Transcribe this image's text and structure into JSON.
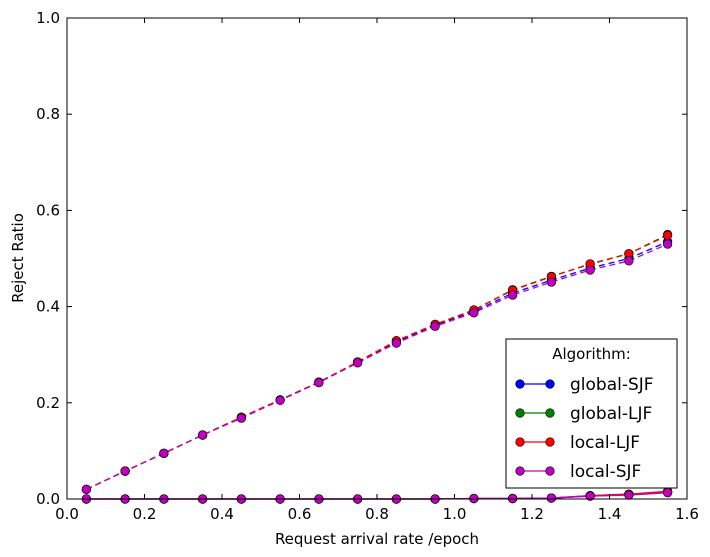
{
  "chart_data": {
    "type": "line",
    "xlabel": "Request arrival rate /epoch",
    "ylabel": "Reject Ratio",
    "xlim": [
      0.0,
      1.6
    ],
    "ylim": [
      0.0,
      1.0
    ],
    "xticks": [
      "0.0",
      "0.2",
      "0.4",
      "0.6",
      "0.8",
      "1.0",
      "1.2",
      "1.4",
      "1.6"
    ],
    "yticks": [
      "0.0",
      "0.2",
      "0.4",
      "0.6",
      "0.8",
      "1.0"
    ],
    "grid": false,
    "legend": {
      "title": "Algorithm:",
      "placement": "bottom-right",
      "entries": [
        {
          "label": "global-SJF",
          "color": "#0000ff"
        },
        {
          "label": "global-LJF",
          "color": "#008000"
        },
        {
          "label": "local-LJF",
          "color": "#ff0000"
        },
        {
          "label": "local-SJF",
          "color": "#bf00bf"
        }
      ]
    },
    "x": [
      0.05,
      0.15,
      0.25,
      0.35,
      0.45,
      0.55,
      0.65,
      0.75,
      0.85,
      0.95,
      1.05,
      1.15,
      1.25,
      1.35,
      1.45,
      1.55
    ],
    "series": [
      {
        "name": "global-SJF",
        "style": "dashed",
        "color": "#0000ff",
        "values": [
          0.02,
          0.058,
          0.095,
          0.133,
          0.17,
          0.206,
          0.243,
          0.284,
          0.326,
          0.361,
          0.39,
          0.428,
          0.455,
          0.48,
          0.5,
          0.535
        ]
      },
      {
        "name": "global-LJF",
        "style": "dashed",
        "color": "#008000",
        "values": [
          0.02,
          0.058,
          0.095,
          0.133,
          0.17,
          0.206,
          0.243,
          0.285,
          0.329,
          0.363,
          0.393,
          0.435,
          0.463,
          0.488,
          0.51,
          0.55
        ]
      },
      {
        "name": "local-LJF",
        "style": "dashed",
        "color": "#ff0000",
        "values": [
          0.02,
          0.058,
          0.095,
          0.133,
          0.17,
          0.206,
          0.243,
          0.285,
          0.329,
          0.363,
          0.393,
          0.434,
          0.462,
          0.489,
          0.51,
          0.548
        ]
      },
      {
        "name": "local-SJF",
        "style": "dashed",
        "color": "#bf00bf",
        "values": [
          0.02,
          0.058,
          0.095,
          0.133,
          0.168,
          0.205,
          0.242,
          0.283,
          0.324,
          0.359,
          0.387,
          0.424,
          0.451,
          0.476,
          0.495,
          0.53
        ]
      },
      {
        "name": "global-SJF",
        "style": "solid",
        "color": "#0000ff",
        "values": [
          0,
          0,
          0,
          0,
          0,
          0,
          0,
          0,
          0,
          0,
          0.001,
          0.001,
          0.002,
          0.006,
          0.009,
          0.014
        ]
      },
      {
        "name": "global-LJF",
        "style": "solid",
        "color": "#008000",
        "values": [
          0,
          0,
          0,
          0,
          0,
          0,
          0,
          0,
          0,
          0,
          0.001,
          0.001,
          0.002,
          0.007,
          0.01,
          0.015
        ]
      },
      {
        "name": "local-LJF",
        "style": "solid",
        "color": "#ff0000",
        "values": [
          0,
          0,
          0,
          0,
          0,
          0,
          0,
          0,
          0,
          0,
          0.001,
          0.001,
          0.002,
          0.007,
          0.01,
          0.016
        ]
      },
      {
        "name": "local-SJF",
        "style": "solid",
        "color": "#bf00bf",
        "values": [
          0,
          0,
          0,
          0,
          0,
          0,
          0,
          0,
          0,
          0,
          0.001,
          0.001,
          0.002,
          0.006,
          0.008,
          0.013
        ]
      }
    ]
  }
}
